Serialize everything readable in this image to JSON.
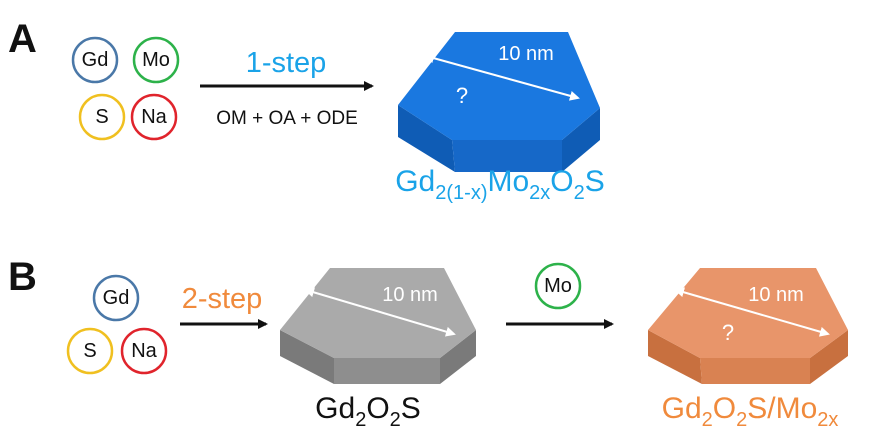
{
  "panels": {
    "a": {
      "label": "A",
      "precursors": [
        {
          "symbol": "Gd",
          "color": "#4a78a8"
        },
        {
          "symbol": "Mo",
          "color": "#2db24a"
        },
        {
          "symbol": "S",
          "color": "#f0c020"
        },
        {
          "symbol": "Na",
          "color": "#e0242c"
        }
      ],
      "step_label": "1-step",
      "step_color": "#1aa3e8",
      "reagents": "OM + OA + ODE",
      "particle": {
        "size_label": "10 nm",
        "unknown_label": "?",
        "top_color": "#1a78e0",
        "side_color": "#0f5cb5",
        "front_color": "#1668c8"
      },
      "product": {
        "parts": [
          "Gd",
          "2(1-x)",
          "Mo",
          "2x",
          "O",
          "2",
          "S"
        ],
        "color": "#1aa3e8"
      }
    },
    "b": {
      "label": "B",
      "precursors": [
        {
          "symbol": "Gd",
          "color": "#4a78a8"
        },
        {
          "symbol": "S",
          "color": "#f0c020"
        },
        {
          "symbol": "Na",
          "color": "#e0242c"
        }
      ],
      "step_label": "2-step",
      "step_color": "#f08a3c",
      "intermediate": {
        "size_label": "10 nm",
        "top_color": "#aaaaaa",
        "side_color": "#7a7a7a",
        "front_color": "#8e8e8e"
      },
      "intermediate_formula": {
        "parts": [
          "Gd",
          "2",
          "O",
          "2",
          "S"
        ],
        "color": "#111111"
      },
      "added": {
        "symbol": "Mo",
        "color": "#2db24a"
      },
      "particle": {
        "size_label": "10 nm",
        "unknown_label": "?",
        "top_color": "#e8956a",
        "side_color": "#c8703f",
        "front_color": "#d98252"
      },
      "product": {
        "parts": [
          "Gd",
          "2",
          "O",
          "2",
          "S/Mo",
          "2x"
        ],
        "color": "#f08a3c"
      }
    }
  }
}
